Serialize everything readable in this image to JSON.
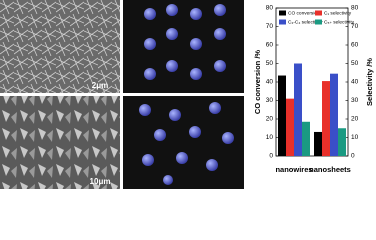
{
  "scale_bars": [
    "2μm",
    "10μm"
  ],
  "chart_data": {
    "type": "bar",
    "ylabel": "CO conversion /%",
    "y2label": "Selectivity /%",
    "categories": [
      "nanowires",
      "nanosheets"
    ],
    "series": [
      {
        "name": "CO conversion",
        "color": "#000000",
        "values": [
          43.5,
          13
        ]
      },
      {
        "name": "C₁ selectivity",
        "color": "#e8302a",
        "values": [
          31,
          40.5
        ],
        "axis": "y2"
      },
      {
        "name": "C₂-C₄ selectivity",
        "color": "#3a4fc8",
        "values": [
          50,
          44.5
        ],
        "axis": "y2"
      },
      {
        "name": "C₅₊ selectivity",
        "color": "#1a9a82",
        "values": [
          18.5,
          15
        ],
        "axis": "y2"
      }
    ],
    "ylim": [
      0,
      80
    ],
    "yticks": [
      0,
      10,
      20,
      30,
      40,
      50,
      60,
      70,
      80
    ],
    "y2lim": [
      0,
      80
    ],
    "y2ticks": [
      0,
      10,
      20,
      30,
      40,
      50,
      60,
      70,
      80
    ]
  }
}
